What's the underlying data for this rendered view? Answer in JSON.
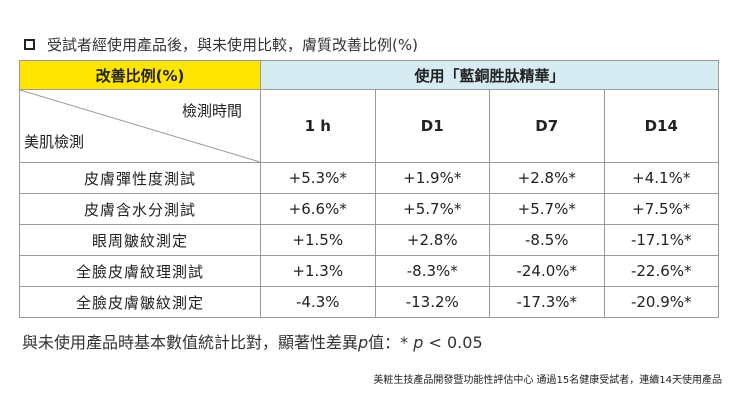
{
  "title": "受試者經使用產品後，與未使用比較，膚質改善比例(%)",
  "table": {
    "left_header": "改善比例(%)",
    "right_header": "使用「藍銅胜肽精華」",
    "diag_top": "檢測時間",
    "diag_bottom": "美肌檢測",
    "time_points": [
      "1 h",
      "D1",
      "D7",
      "D14"
    ],
    "rows": [
      {
        "label": "皮膚彈性度測試",
        "values": [
          "+5.3%*",
          "+1.9%*",
          "+2.8%*",
          "+4.1%*"
        ]
      },
      {
        "label": "皮膚含水分測試",
        "values": [
          "+6.6%*",
          "+5.7%*",
          "+5.7%*",
          "+7.5%*"
        ]
      },
      {
        "label": "眼周皺紋測定",
        "values": [
          "+1.5%",
          "+2.8%",
          "-8.5%",
          "-17.1%*"
        ]
      },
      {
        "label": "全臉皮膚紋理測試",
        "values": [
          "+1.3%",
          "-8.3%*",
          "-24.0%*",
          "-22.6%*"
        ]
      },
      {
        "label": "全臉皮膚皺紋測定",
        "values": [
          "-4.3%",
          "-13.2%",
          "-17.3%*",
          "-20.9%*"
        ]
      }
    ]
  },
  "note": {
    "prefix": "與未使用產品時基本數值統計比對，顯著性差異",
    "p": "p",
    "suffix": "值：* ",
    "p2": "p",
    "threshold": " < 0.05"
  },
  "footer": "美粧生技產品開發暨功能性評估中心 通過15名健康受試者，連續14天使用產品",
  "colors": {
    "left_header_bg": "#ffe500",
    "right_header_bg": "#d6ecf2"
  }
}
